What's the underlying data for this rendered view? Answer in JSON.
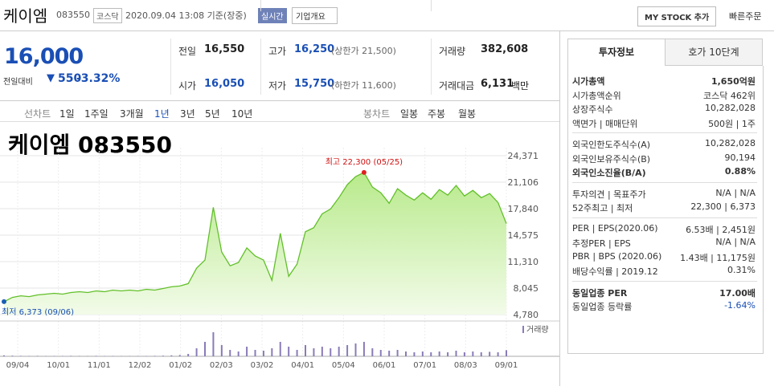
{
  "header": {
    "name": "케이엠",
    "code": "083550",
    "market": "코스닥",
    "datetime": "2020.09.04 13:08 기준(장중)",
    "realtime": "실시간",
    "company_info": "기업개요",
    "mystock": "MY STOCK 추가",
    "quick_order": "빠른주문"
  },
  "quote": {
    "price": "16,000",
    "change_label": "전일대비",
    "change": "550",
    "change_rate": "-3.32%"
  },
  "stats": [
    {
      "label": "전일",
      "value": "16,550"
    },
    {
      "label": "고가",
      "value": "16,250",
      "note": "(상한가 21,500)"
    },
    {
      "label": "거래량",
      "value": "382,608"
    },
    {
      "label": "시가",
      "value": "16,050"
    },
    {
      "label": "저가",
      "value": "15,750",
      "note": "(하한가 11,600)"
    },
    {
      "label": "거래대금",
      "value": "6,131",
      "unit": "백만"
    }
  ],
  "tabs": {
    "line_chart": "선차트",
    "periods": [
      "1일",
      "1주일",
      "3개월",
      "1년",
      "3년",
      "5년",
      "10년"
    ],
    "candle_chart": "봉차트",
    "candle_periods": [
      "일봉",
      "주봉",
      "월봉"
    ]
  },
  "chart_data": {
    "type": "area",
    "title": "케이엠 083550",
    "color": "#62c02a",
    "values": [
      6373,
      6900,
      7100,
      7000,
      7200,
      7300,
      7400,
      7300,
      7500,
      7600,
      7500,
      7700,
      7600,
      7800,
      7700,
      7800,
      7700,
      7900,
      7800,
      8000,
      8200,
      8300,
      8600,
      10500,
      11500,
      18000,
      12500,
      10800,
      11200,
      13000,
      12000,
      11500,
      9000,
      14800,
      9500,
      11000,
      15000,
      15500,
      17200,
      17800,
      19200,
      20800,
      21800,
      22300,
      20500,
      19800,
      18500,
      20300,
      19500,
      18900,
      19800,
      19000,
      20200,
      19500,
      20700,
      19400,
      20100,
      19200,
      19700,
      18600,
      16000
    ],
    "volumes": [
      60000,
      40000,
      30000,
      25000,
      30000,
      20000,
      25000,
      20000,
      30000,
      25000,
      20000,
      30000,
      20000,
      25000,
      20000,
      20000,
      25000,
      20000,
      30000,
      40000,
      60000,
      80000,
      150000,
      500000,
      900000,
      1500000,
      700000,
      400000,
      300000,
      600000,
      400000,
      350000,
      500000,
      900000,
      600000,
      400000,
      700000,
      500000,
      600000,
      500000,
      600000,
      700000,
      800000,
      900000,
      500000,
      400000,
      350000,
      400000,
      300000,
      250000,
      300000,
      250000,
      300000,
      250000,
      350000,
      250000,
      300000,
      250000,
      280000,
      250000,
      382608
    ],
    "volume_label": "거래량",
    "xtick_labels": [
      "09/04",
      "10/01",
      "11/01",
      "12/02",
      "01/02",
      "02/03",
      "03/02",
      "04/01",
      "05/04",
      "06/01",
      "07/01",
      "08/03",
      "09/01"
    ],
    "ylim": [
      4780,
      24371
    ],
    "yticks": [
      {
        "value": 24371,
        "label": "24,371"
      },
      {
        "value": 21106,
        "label": "21,106"
      },
      {
        "value": 17840,
        "label": "17,840"
      },
      {
        "value": 14575,
        "label": "14,575"
      },
      {
        "value": 11310,
        "label": "11,310"
      },
      {
        "value": 8045,
        "label": "8,045"
      },
      {
        "value": 4780,
        "label": "4,780"
      }
    ],
    "high_label": "최고 22,300 (05/25)",
    "low_label": "최저 6,373 (09/06)",
    "grid": true
  },
  "invest": {
    "tabs": [
      "투자정보",
      "호가 10단계"
    ],
    "groups": [
      [
        {
          "label": "시가총액",
          "value": "1,650억원"
        },
        {
          "label": "시가총액순위",
          "value": "코스닥 462위"
        },
        {
          "label": "상장주식수",
          "value": "10,282,028"
        },
        {
          "label": "액면가 | 매매단위",
          "value": "500원 | 1주"
        }
      ],
      [
        {
          "label": "외국인한도주식수(A)",
          "value": "10,282,028"
        },
        {
          "label": "외국인보유주식수(B)",
          "value": "90,194"
        },
        {
          "label": "외국인소진율(B/A)",
          "value": "0.88%"
        }
      ],
      [
        {
          "label": "투자의견 | 목표주가",
          "value": "N/A | N/A"
        },
        {
          "label": "52주최고 | 최저",
          "value": "22,300 | 6,373"
        }
      ],
      [
        {
          "label": "PER | EPS(2020.06)",
          "value": "6.53배 | 2,451원"
        },
        {
          "label": "추정PER | EPS",
          "value": "N/A | N/A"
        },
        {
          "label": "PBR | BPS (2020.06)",
          "value": "1.43배 | 11,175원"
        },
        {
          "label": "배당수익률 | 2019.12",
          "value": "0.31%"
        }
      ],
      [
        {
          "label": "동일업종 PER",
          "value": "17.00배"
        },
        {
          "label": "동일업종 등락률",
          "value": "-1.64%"
        }
      ]
    ]
  }
}
